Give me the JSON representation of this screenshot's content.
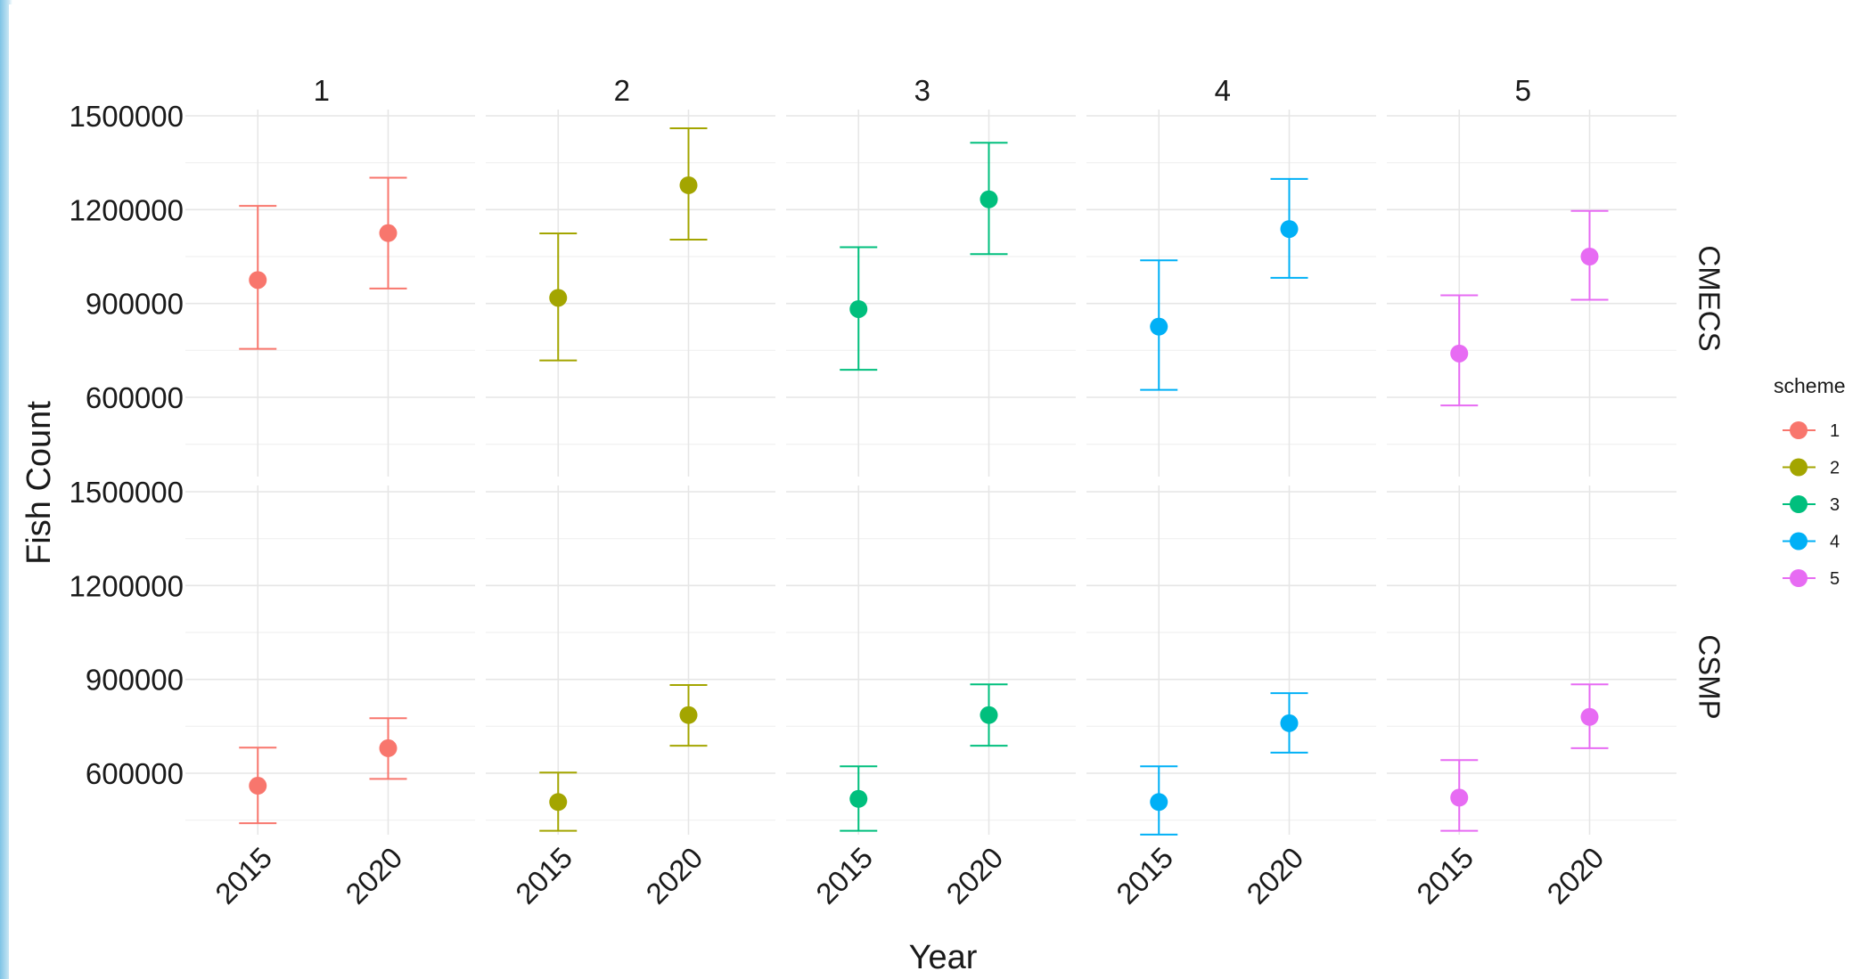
{
  "chart_data": {
    "type": "scatter",
    "variant": "faceted point-range with error bars",
    "xlabel": "Year",
    "ylabel": "Fish Count",
    "x_categories": [
      "2015",
      "2020"
    ],
    "column_facets": [
      "1",
      "2",
      "3",
      "4",
      "5"
    ],
    "row_facets": [
      "CMECS",
      "CSMP"
    ],
    "y_ticks": [
      600000,
      900000,
      1200000,
      1500000
    ],
    "y_tick_labels": [
      "600000",
      "900000",
      "1200000",
      "1500000"
    ],
    "ylim": [
      330000,
      1555000
    ],
    "grid": true,
    "legend": {
      "title": "scheme",
      "position": "right",
      "entries": [
        "1",
        "2",
        "3",
        "4",
        "5"
      ]
    },
    "colors": {
      "1": "#F8766D",
      "2": "#A3A500",
      "3": "#00BF7D",
      "4": "#00B0F6",
      "5": "#E76BF3"
    },
    "series": [
      {
        "name": "1",
        "row": "CMECS",
        "x": [
          "2015",
          "2020"
        ],
        "y": [
          975000,
          1125000
        ],
        "ymin": [
          755000,
          948000
        ],
        "ymax": [
          1212000,
          1302000
        ]
      },
      {
        "name": "2",
        "row": "CMECS",
        "x": [
          "2015",
          "2020"
        ],
        "y": [
          918000,
          1278000
        ],
        "ymin": [
          718000,
          1104000
        ],
        "ymax": [
          1124000,
          1460000
        ]
      },
      {
        "name": "3",
        "row": "CMECS",
        "x": [
          "2015",
          "2020"
        ],
        "y": [
          882000,
          1233000
        ],
        "ymin": [
          688000,
          1058000
        ],
        "ymax": [
          1080000,
          1414000
        ]
      },
      {
        "name": "4",
        "row": "CMECS",
        "x": [
          "2015",
          "2020"
        ],
        "y": [
          826000,
          1138000
        ],
        "ymin": [
          624000,
          982000
        ],
        "ymax": [
          1038000,
          1298000
        ]
      },
      {
        "name": "5",
        "row": "CMECS",
        "x": [
          "2015",
          "2020"
        ],
        "y": [
          740000,
          1050000
        ],
        "ymin": [
          574000,
          912000
        ],
        "ymax": [
          926000,
          1196000
        ]
      },
      {
        "name": "1",
        "row": "CSMP",
        "x": [
          "2015",
          "2020"
        ],
        "y": [
          560000,
          680000
        ],
        "ymin": [
          440000,
          582000
        ],
        "ymax": [
          682000,
          776000
        ]
      },
      {
        "name": "2",
        "row": "CSMP",
        "x": [
          "2015",
          "2020"
        ],
        "y": [
          508000,
          786000
        ],
        "ymin": [
          416000,
          688000
        ],
        "ymax": [
          602000,
          882000
        ]
      },
      {
        "name": "3",
        "row": "CSMP",
        "x": [
          "2015",
          "2020"
        ],
        "y": [
          518000,
          786000
        ],
        "ymin": [
          416000,
          688000
        ],
        "ymax": [
          622000,
          884000
        ]
      },
      {
        "name": "4",
        "row": "CSMP",
        "x": [
          "2015",
          "2020"
        ],
        "y": [
          508000,
          760000
        ],
        "ymin": [
          404000,
          666000
        ],
        "ymax": [
          622000,
          856000
        ]
      },
      {
        "name": "5",
        "row": "CSMP",
        "x": [
          "2015",
          "2020"
        ],
        "y": [
          522000,
          780000
        ],
        "ymin": [
          416000,
          680000
        ],
        "ymax": [
          642000,
          884000
        ]
      }
    ]
  }
}
